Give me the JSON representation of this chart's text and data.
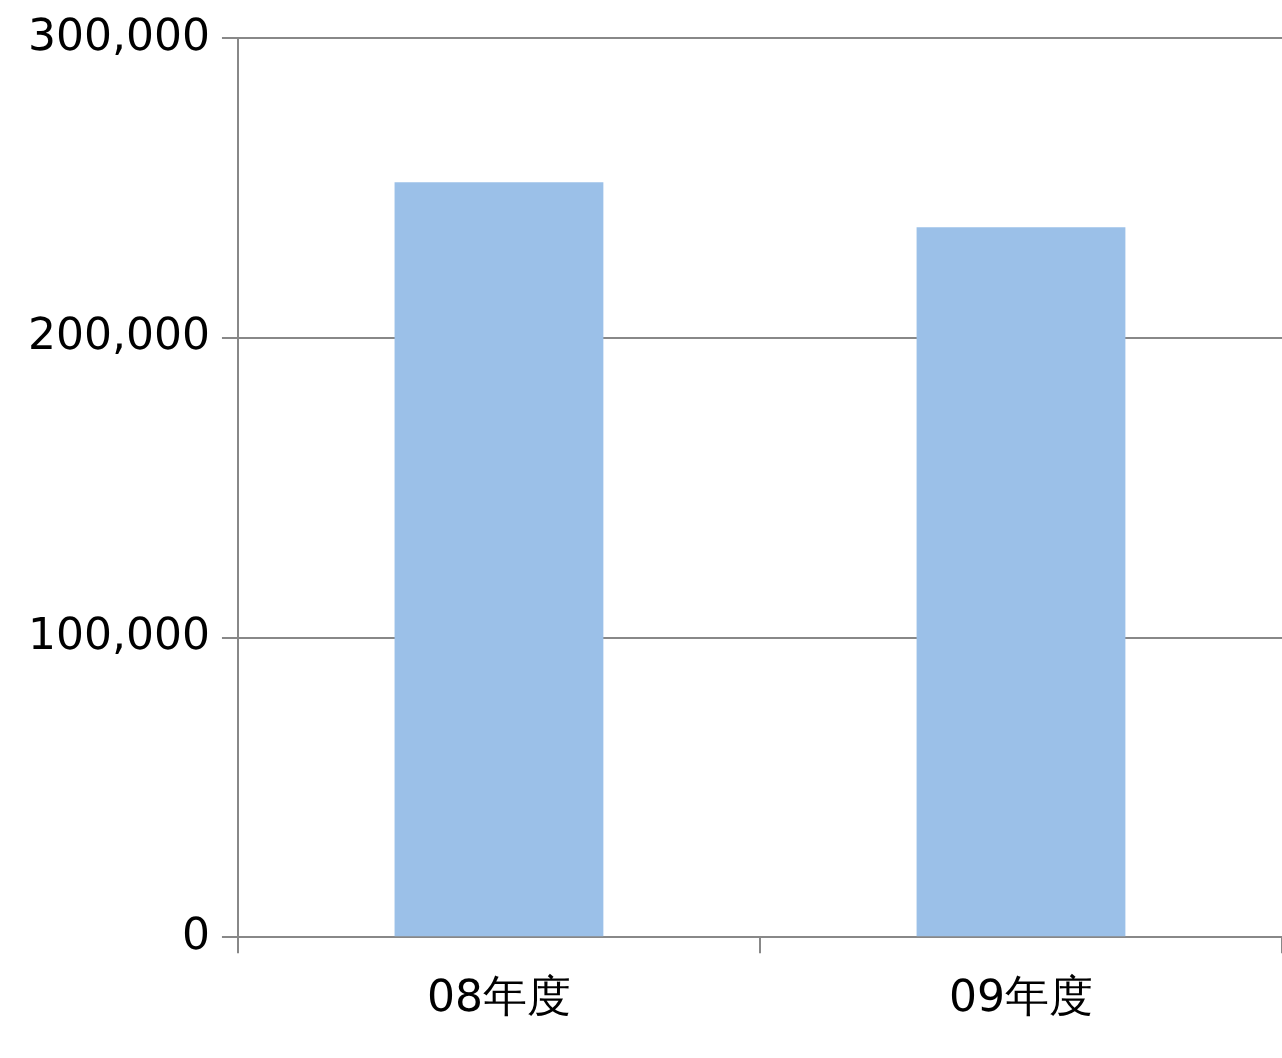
{
  "chart_data": {
    "type": "bar",
    "categories": [
      "08年度",
      "09年度"
    ],
    "values": [
      252000,
      237000
    ],
    "color": "#9bc0e8",
    "ylim": [
      0,
      300000
    ],
    "yticks": [
      {
        "value": 0,
        "label": "0"
      },
      {
        "value": 100000,
        "label": "100,000"
      },
      {
        "value": 200000,
        "label": "200,000"
      },
      {
        "value": 300000,
        "label": "300,000"
      }
    ],
    "grid": "y"
  }
}
